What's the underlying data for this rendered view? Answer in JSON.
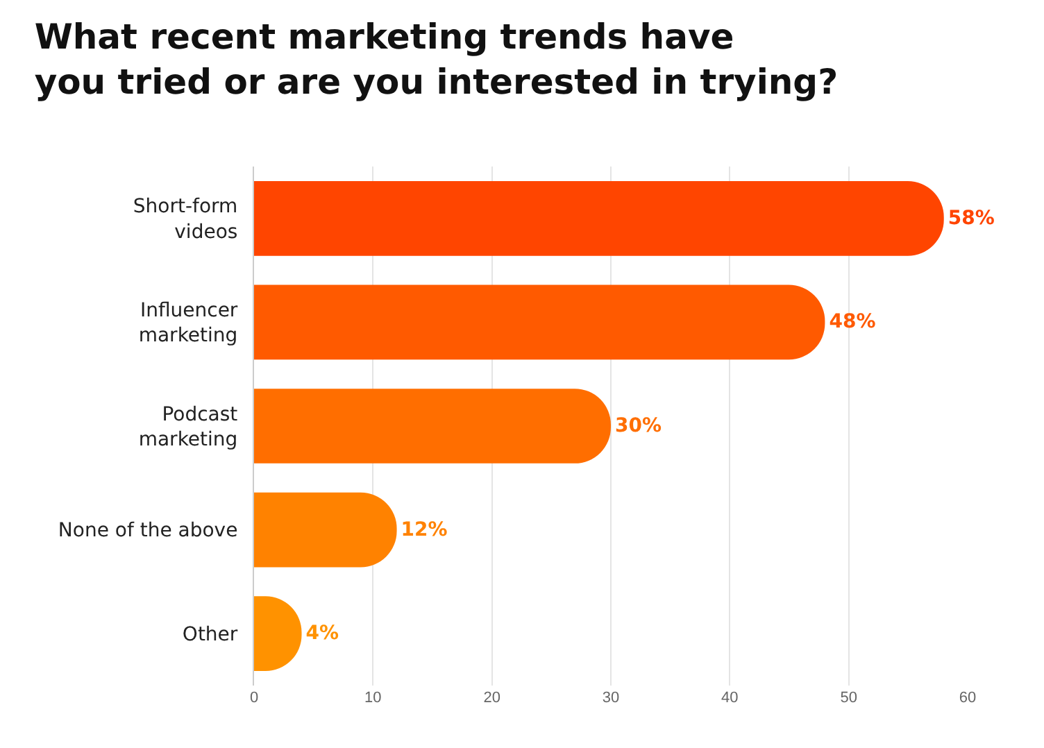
{
  "chart_data": {
    "type": "bar",
    "orientation": "horizontal",
    "title": "What recent marketing trends have\nyou tried or are you interested in trying?",
    "categories": [
      "Short-form\nvideos",
      "Influencer\nmarketing",
      "Podcast\nmarketing",
      "None of the above",
      "Other"
    ],
    "values": [
      58,
      48,
      30,
      12,
      4
    ],
    "value_labels": [
      "58%",
      "48%",
      "30%",
      "12%",
      "4%"
    ],
    "colors": [
      "#ff4500",
      "#ff5a00",
      "#ff6e00",
      "#ff8200",
      "#ff9200"
    ],
    "xlim": [
      0,
      60
    ],
    "xticks": [
      0,
      10,
      20,
      30,
      40,
      50,
      60
    ],
    "grid": "x"
  }
}
